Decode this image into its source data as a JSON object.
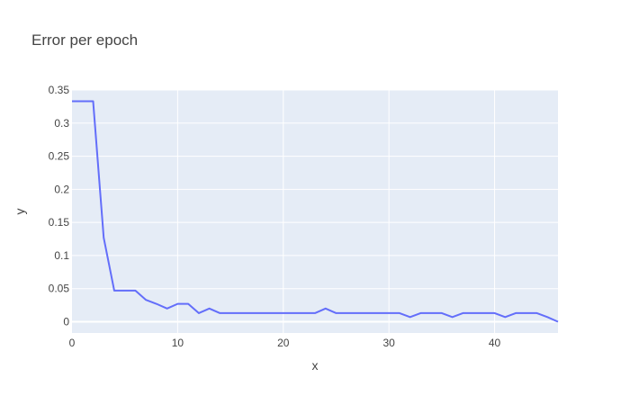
{
  "chart_data": {
    "type": "line",
    "title": "Error per epoch",
    "xlabel": "x",
    "ylabel": "y",
    "xlim": [
      0,
      46
    ],
    "ylim": [
      -0.017,
      0.35
    ],
    "xticks": [
      0,
      10,
      20,
      30,
      40
    ],
    "yticks": [
      0,
      0.05,
      0.1,
      0.15,
      0.2,
      0.25,
      0.3,
      0.35
    ],
    "ytick_labels": [
      "0",
      "0.05",
      "0.1",
      "0.15",
      "0.2",
      "0.25",
      "0.3",
      "0.35"
    ],
    "grid": true,
    "colors": {
      "plot_bg": "#e5ecf6",
      "grid": "#ffffff",
      "line": "#636efa"
    },
    "series": [
      {
        "x": [
          0,
          1,
          2,
          3,
          4,
          5,
          6,
          7,
          8,
          9,
          10,
          11,
          12,
          13,
          14,
          15,
          16,
          17,
          18,
          19,
          20,
          21,
          22,
          23,
          24,
          25,
          26,
          27,
          28,
          29,
          30,
          31,
          32,
          33,
          34,
          35,
          36,
          37,
          38,
          39,
          40,
          41,
          42,
          43,
          44,
          45,
          46
        ],
        "y": [
          0.333,
          0.333,
          0.333,
          0.127,
          0.047,
          0.047,
          0.047,
          0.033,
          0.027,
          0.02,
          0.027,
          0.027,
          0.013,
          0.02,
          0.013,
          0.013,
          0.013,
          0.013,
          0.013,
          0.013,
          0.013,
          0.013,
          0.013,
          0.013,
          0.02,
          0.013,
          0.013,
          0.013,
          0.013,
          0.013,
          0.013,
          0.013,
          0.007,
          0.013,
          0.013,
          0.013,
          0.007,
          0.013,
          0.013,
          0.013,
          0.013,
          0.007,
          0.013,
          0.013,
          0.013,
          0.007,
          0.0
        ]
      }
    ]
  }
}
